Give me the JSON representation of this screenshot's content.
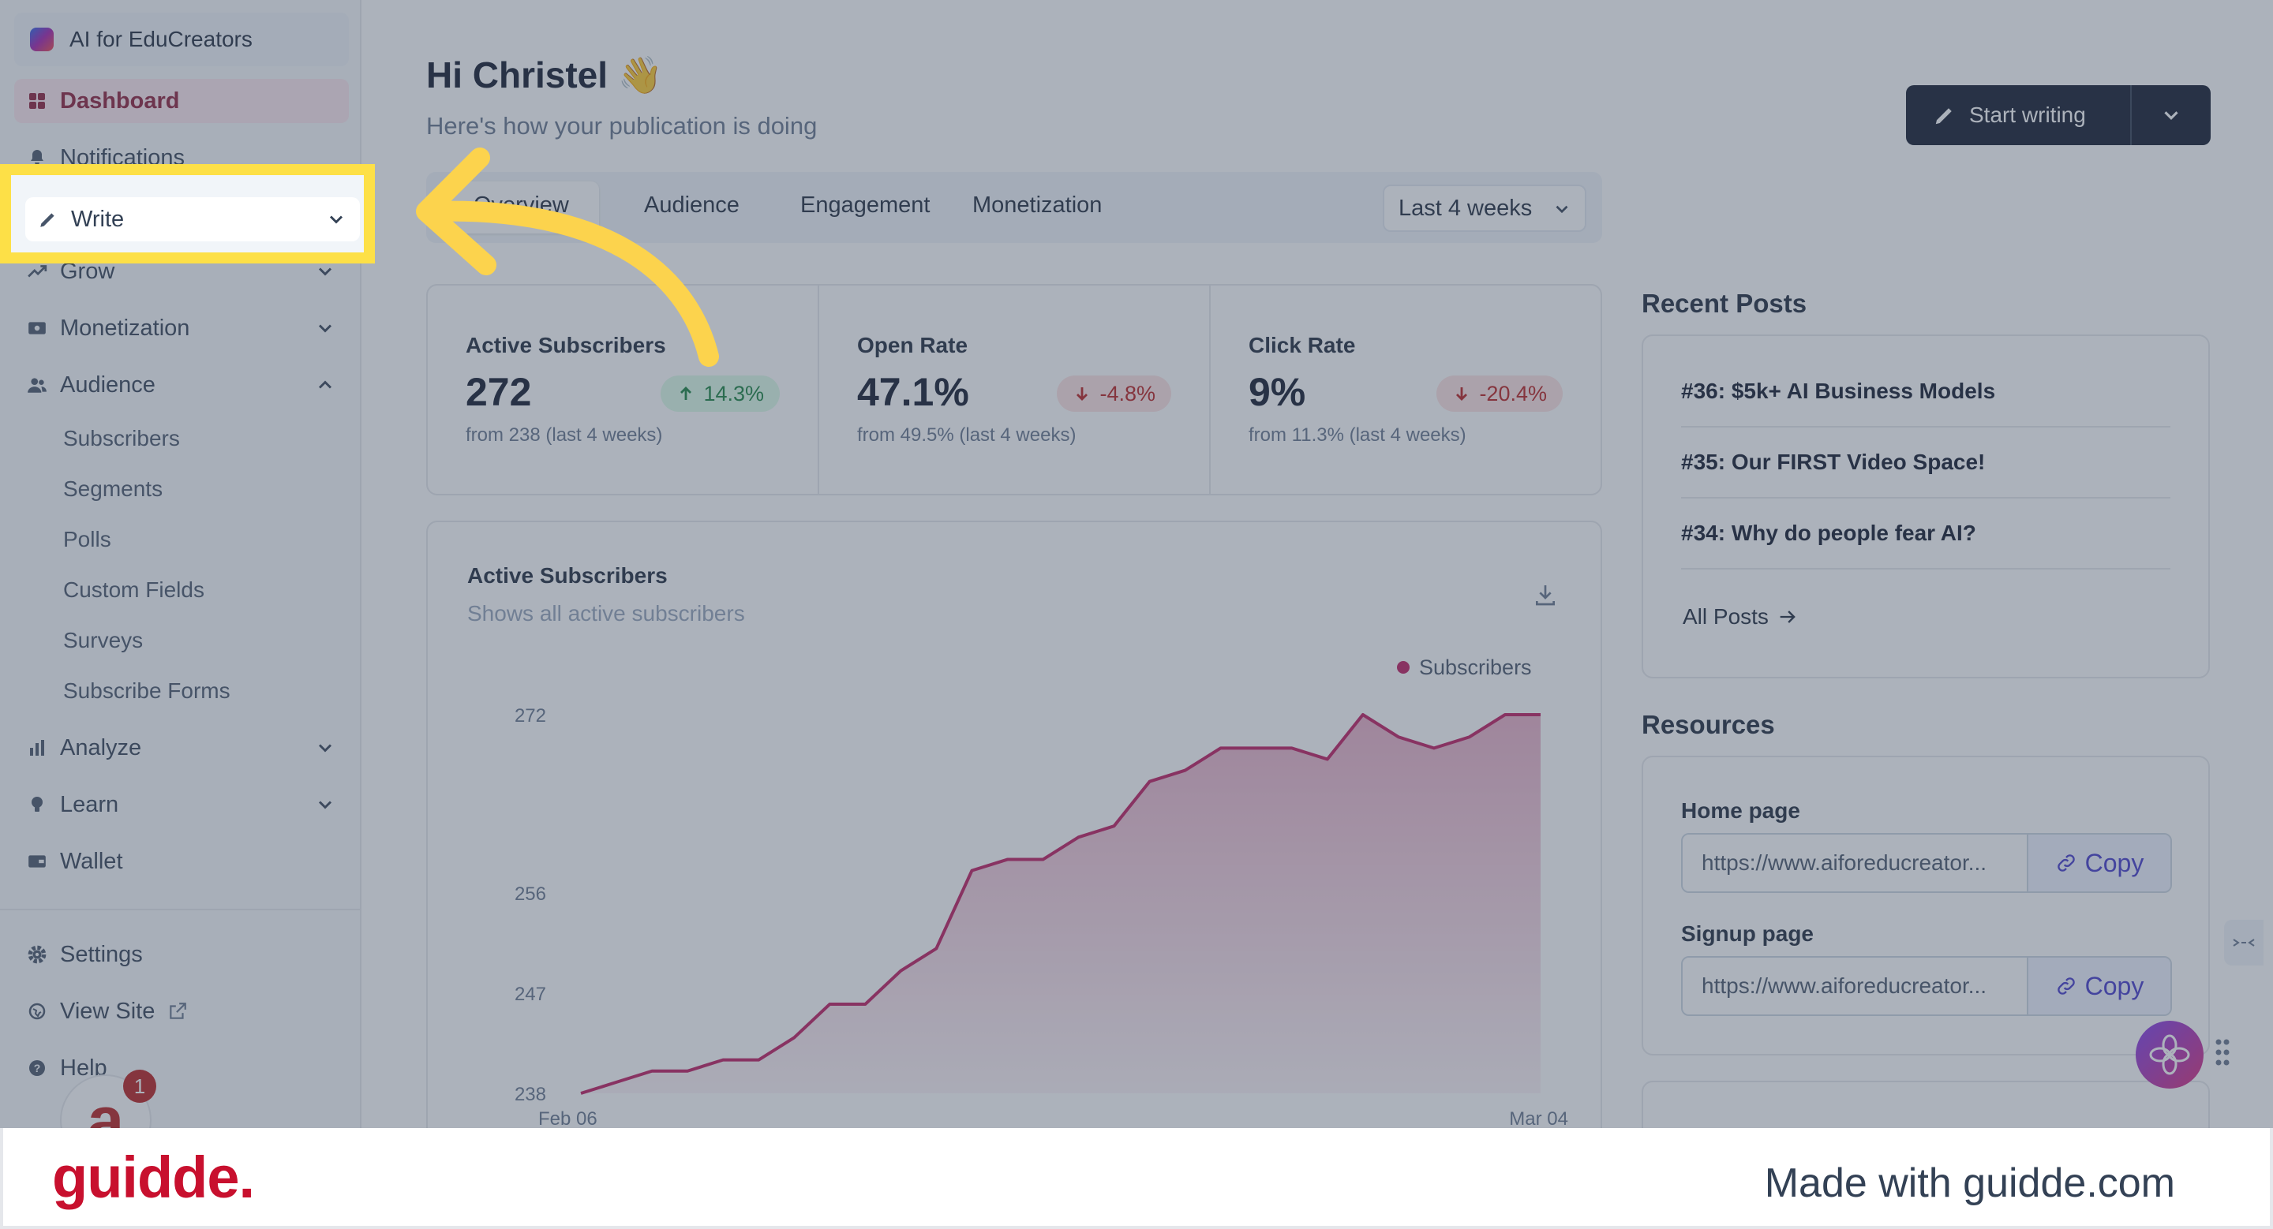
{
  "sidebar": {
    "publication": "AI for EduCreators",
    "items": [
      {
        "label": "Dashboard",
        "icon": "grid-icon"
      },
      {
        "label": "Notifications",
        "icon": "bell-icon"
      },
      {
        "label": "Write",
        "icon": "pencil-icon"
      },
      {
        "label": "Grow",
        "icon": "trend-icon"
      },
      {
        "label": "Monetization",
        "icon": "money-icon"
      },
      {
        "label": "Audience",
        "icon": "users-icon"
      },
      {
        "label": "Analyze",
        "icon": "bar-chart-icon"
      },
      {
        "label": "Learn",
        "icon": "bulb-icon"
      },
      {
        "label": "Wallet",
        "icon": "wallet-icon"
      }
    ],
    "audience_sub": [
      "Subscribers",
      "Segments",
      "Polls",
      "Custom Fields",
      "Surveys",
      "Subscribe Forms"
    ],
    "bottom": [
      {
        "label": "Settings",
        "icon": "gear-icon"
      },
      {
        "label": "View Site",
        "icon": "globe-icon"
      },
      {
        "label": "Help",
        "icon": "help-icon"
      }
    ],
    "avatar": {
      "letter": "a",
      "badge": "1"
    }
  },
  "header": {
    "title": "Hi Christel 👋",
    "subtitle": "Here's how your publication is doing",
    "start_writing": "Start writing"
  },
  "tabs": {
    "items": [
      "Overview",
      "Audience",
      "Engagement",
      "Monetization"
    ],
    "range": "Last 4 weeks"
  },
  "stats": [
    {
      "label": "Active Subscribers",
      "value": "272",
      "change": "14.3%",
      "direction": "up",
      "from": "from 238 (last 4 weeks)"
    },
    {
      "label": "Open Rate",
      "value": "47.1%",
      "change": "-4.8%",
      "direction": "down",
      "from": "from 49.5% (last 4 weeks)"
    },
    {
      "label": "Click Rate",
      "value": "9%",
      "change": "-20.4%",
      "direction": "down",
      "from": "from 11.3% (last 4 weeks)"
    }
  ],
  "chart": {
    "title": "Active Subscribers",
    "subtitle": "Shows all active subscribers",
    "legend": "Subscribers"
  },
  "chart_data": {
    "type": "area",
    "title": "Active Subscribers",
    "x_start": "Feb 06",
    "x_end": "Mar 04",
    "yticks": [
      238,
      247,
      256,
      272
    ],
    "ylim": [
      238,
      272
    ],
    "series": [
      {
        "name": "Subscribers",
        "color": "#be185d",
        "values": [
          238,
          239,
          240,
          240,
          241,
          241,
          243,
          246,
          246,
          249,
          251,
          258,
          259,
          259,
          261,
          262,
          266,
          267,
          269,
          269,
          269,
          268,
          272,
          270,
          269,
          270,
          272,
          272
        ]
      }
    ]
  },
  "recent_posts": {
    "title": "Recent Posts",
    "items": [
      "#36: $5k+ AI Business Models",
      "#35: Our FIRST Video Space!",
      "#34: Why do people fear AI?"
    ],
    "all_posts": "All Posts"
  },
  "resources": {
    "title": "Resources",
    "home_label": "Home page",
    "home_url": "https://www.aiforeducreator...",
    "signup_label": "Signup page",
    "signup_url": "https://www.aiforeducreator...",
    "copy_label": "Copy"
  },
  "footer": {
    "brand": "guidde.",
    "made_with": "Made with guidde.com"
  },
  "colors": {
    "brand_red": "#c8102e",
    "highlight_yellow": "#fde047",
    "chart_line": "#be185d"
  }
}
